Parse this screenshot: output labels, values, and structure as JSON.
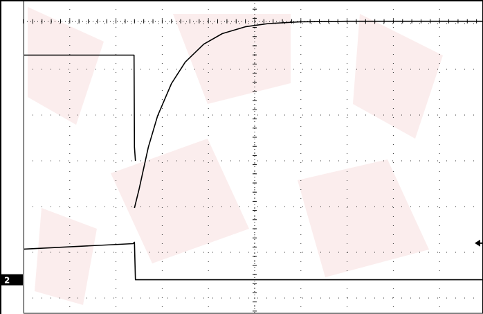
{
  "chart_data": {
    "type": "line",
    "title": "",
    "xlabel": "",
    "ylabel": "",
    "grid": "dotted",
    "x_divisions": 10,
    "y_divisions": 8,
    "xlim": [
      0,
      10
    ],
    "ylim": [
      -4,
      4
    ],
    "series": [
      {
        "x": [
          0,
          2.39,
          2.4,
          2.42
        ],
        "y": [
          2.31,
          2.31,
          0.3,
          0
        ]
      },
      {
        "x": [
          0,
          2.37,
          2.4,
          2.42,
          10
        ],
        "y": [
          -1.93,
          -1.81,
          -1.78,
          -2.6,
          -2.6
        ]
      },
      {
        "x": [
          2.4,
          2.5,
          2.7,
          2.9,
          3.2,
          3.5,
          3.9,
          4.3,
          4.8,
          5.3,
          6,
          7,
          8,
          10
        ],
        "y": [
          -1.03,
          -0.62,
          0.3,
          0.98,
          1.69,
          2.16,
          2.55,
          2.78,
          2.93,
          3.0,
          3.04,
          3.05,
          3.05,
          3.05
        ]
      }
    ],
    "channel_marker": {
      "label": "2",
      "y": -2.6,
      "color": "#000000"
    },
    "trigger_marker": {
      "y": -1.8,
      "color": "#000000"
    },
    "colors": {
      "trace": "#000000",
      "grid": "#000000",
      "background": "#ffffff",
      "watermark": "#f7dede"
    }
  }
}
